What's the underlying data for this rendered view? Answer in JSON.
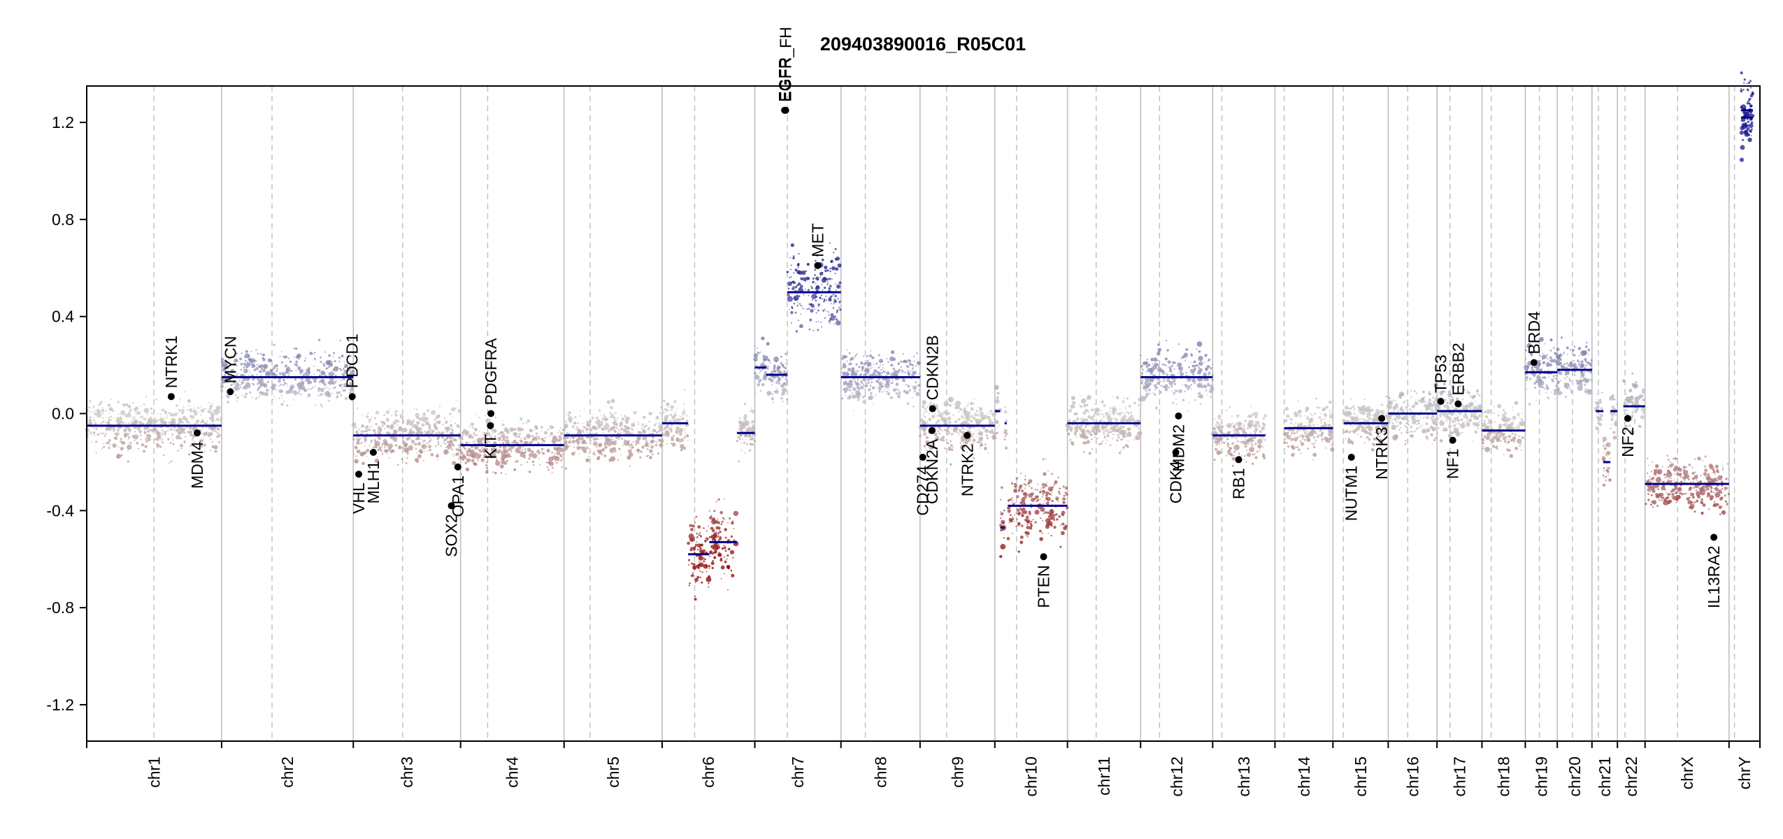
{
  "chart_data": {
    "type": "scatter",
    "title": "209403890016_R05C01",
    "xlabel": "",
    "ylabel": "",
    "ylim": [
      -1.35,
      1.35
    ],
    "yticks": [
      -1.2,
      -0.8,
      -0.4,
      0.0,
      0.4,
      0.8,
      1.2
    ],
    "ytick_labels": [
      "-1.2",
      "-0.8",
      "-0.4",
      "0.0",
      "0.4",
      "0.8",
      "1.2"
    ],
    "grid": false,
    "colors": {
      "gain": "#1a1a8c",
      "loss": "#8b0000",
      "neutral": "#c8c8c8",
      "segment": "#00008b",
      "gene_point": "#000000",
      "chrom_border": "#bebebe"
    },
    "chromosomes": [
      {
        "name": "chr1",
        "start": 0.0,
        "end": 249.0,
        "centromere": 124.0
      },
      {
        "name": "chr2",
        "start": 249.0,
        "end": 492.0,
        "centromere": 93.0
      },
      {
        "name": "chr3",
        "start": 492.0,
        "end": 690.0,
        "centromere": 91.0
      },
      {
        "name": "chr4",
        "start": 690.0,
        "end": 881.0,
        "centromere": 50.0
      },
      {
        "name": "chr5",
        "start": 881.0,
        "end": 1062.0,
        "centromere": 48.0
      },
      {
        "name": "chr6",
        "start": 1062.0,
        "end": 1233.0,
        "centromere": 60.0
      },
      {
        "name": "chr7",
        "start": 1233.0,
        "end": 1392.0,
        "centromere": 60.0
      },
      {
        "name": "chr8",
        "start": 1392.0,
        "end": 1538.0,
        "centromere": 45.0
      },
      {
        "name": "chr9",
        "start": 1538.0,
        "end": 1676.0,
        "centromere": 49.0
      },
      {
        "name": "chr10",
        "start": 1676.0,
        "end": 1810.0,
        "centromere": 40.0
      },
      {
        "name": "chr11",
        "start": 1810.0,
        "end": 1945.0,
        "centromere": 53.0
      },
      {
        "name": "chr12",
        "start": 1945.0,
        "end": 2078.0,
        "centromere": 35.0
      },
      {
        "name": "chr13",
        "start": 2078.0,
        "end": 2193.0,
        "centromere": 17.0
      },
      {
        "name": "chr14",
        "start": 2193.0,
        "end": 2300.0,
        "centromere": 17.0
      },
      {
        "name": "chr15",
        "start": 2300.0,
        "end": 2402.0,
        "centromere": 19.0
      },
      {
        "name": "chr16",
        "start": 2402.0,
        "end": 2492.0,
        "centromere": 36.0
      },
      {
        "name": "chr17",
        "start": 2492.0,
        "end": 2575.0,
        "centromere": 24.0
      },
      {
        "name": "chr18",
        "start": 2575.0,
        "end": 2655.0,
        "centromere": 17.0
      },
      {
        "name": "chr19",
        "start": 2655.0,
        "end": 2714.0,
        "centromere": 26.0
      },
      {
        "name": "chr20",
        "start": 2714.0,
        "end": 2778.0,
        "centromere": 28.0
      },
      {
        "name": "chr21",
        "start": 2778.0,
        "end": 2825.0,
        "centromere": 12.0
      },
      {
        "name": "chr22",
        "start": 2825.0,
        "end": 2876.0,
        "centromere": 14.0
      },
      {
        "name": "chrX",
        "start": 2876.0,
        "end": 3031.0,
        "centromere": 60.0
      },
      {
        "name": "chrY",
        "start": 3031.0,
        "end": 3088.0,
        "centromere": 10.0
      }
    ],
    "xlim": [
      0,
      3088
    ],
    "segments": [
      {
        "chr": "chr1",
        "start": 0.0,
        "end": 249.0,
        "value": -0.05
      },
      {
        "chr": "chr2",
        "start": 249.0,
        "end": 492.0,
        "value": 0.15
      },
      {
        "chr": "chr3",
        "start": 492.0,
        "end": 690.0,
        "value": -0.09
      },
      {
        "chr": "chr4",
        "start": 690.0,
        "end": 881.0,
        "value": -0.13
      },
      {
        "chr": "chr5",
        "start": 881.0,
        "end": 1062.0,
        "value": -0.09
      },
      {
        "chr": "chr6",
        "start": 1062.0,
        "end": 1110.0,
        "value": -0.04
      },
      {
        "chr": "chr6",
        "start": 1110.0,
        "end": 1149.0,
        "value": -0.58
      },
      {
        "chr": "chr6",
        "start": 1149.0,
        "end": 1200.0,
        "value": -0.53
      },
      {
        "chr": "chr6",
        "start": 1200.0,
        "end": 1233.0,
        "value": -0.08
      },
      {
        "chr": "chr7",
        "start": 1233.0,
        "end": 1254.0,
        "value": 0.19
      },
      {
        "chr": "chr7",
        "start": 1254.0,
        "end": 1293.0,
        "value": 0.16
      },
      {
        "chr": "chr7",
        "start": 1293.0,
        "end": 1392.0,
        "value": 0.5
      },
      {
        "chr": "chr8",
        "start": 1392.0,
        "end": 1538.0,
        "value": 0.15
      },
      {
        "chr": "chr9",
        "start": 1538.0,
        "end": 1676.0,
        "value": -0.05
      },
      {
        "chr": "chr10",
        "start": 1676.0,
        "end": 1686.0,
        "value": 0.01
      },
      {
        "chr": "chr10",
        "start": 1686.0,
        "end": 1694.0,
        "value": -0.47
      },
      {
        "chr": "chr10",
        "start": 1694.0,
        "end": 1698.0,
        "value": -0.04
      },
      {
        "chr": "chr10",
        "start": 1700.0,
        "end": 1810.0,
        "value": -0.38
      },
      {
        "chr": "chr11",
        "start": 1810.0,
        "end": 1945.0,
        "value": -0.04
      },
      {
        "chr": "chr12",
        "start": 1945.0,
        "end": 2078.0,
        "value": 0.15
      },
      {
        "chr": "chr13",
        "start": 2078.0,
        "end": 2175.0,
        "value": -0.09
      },
      {
        "chr": "chr14",
        "start": 2210.0,
        "end": 2300.0,
        "value": -0.06
      },
      {
        "chr": "chr15",
        "start": 2320.0,
        "end": 2402.0,
        "value": -0.04
      },
      {
        "chr": "chr16",
        "start": 2402.0,
        "end": 2492.0,
        "value": 0.0
      },
      {
        "chr": "chr17",
        "start": 2492.0,
        "end": 2575.0,
        "value": 0.01
      },
      {
        "chr": "chr18",
        "start": 2575.0,
        "end": 2655.0,
        "value": -0.07
      },
      {
        "chr": "chr19",
        "start": 2655.0,
        "end": 2714.0,
        "value": 0.17
      },
      {
        "chr": "chr20",
        "start": 2714.0,
        "end": 2778.0,
        "value": 0.18
      },
      {
        "chr": "chr21",
        "start": 2785.0,
        "end": 2799.0,
        "value": 0.01
      },
      {
        "chr": "chr21",
        "start": 2799.0,
        "end": 2812.0,
        "value": -0.2
      },
      {
        "chr": "chr21",
        "start": 2812.0,
        "end": 2825.0,
        "value": 0.01
      },
      {
        "chr": "chr22",
        "start": 2836.0,
        "end": 2876.0,
        "value": 0.03
      },
      {
        "chr": "chrX",
        "start": 2876.0,
        "end": 3031.0,
        "value": -0.29
      },
      {
        "chr": "chrY",
        "start": 3053.0,
        "end": 3075.0,
        "value": 1.22
      },
      {
        "chr": "chrY",
        "start": 3053.0,
        "end": 3075.0,
        "value": 1.25
      }
    ],
    "genes": [
      {
        "label": "NTRK1",
        "x": 156.0,
        "value": 0.07
      },
      {
        "label": "MDM4",
        "x": 204.0,
        "value": -0.08
      },
      {
        "label": "MYCN",
        "x": 265.0,
        "value": 0.09
      },
      {
        "label": "PDCD1",
        "x": 490.0,
        "value": 0.07
      },
      {
        "label": "VHL",
        "x": 502.0,
        "value": -0.25
      },
      {
        "label": "MLH1",
        "x": 529.0,
        "value": -0.16
      },
      {
        "label": "SOX2",
        "x": 673.0,
        "value": -0.38
      },
      {
        "label": "OPA1",
        "x": 685.0,
        "value": -0.22
      },
      {
        "label": "KIT",
        "x": 745.0,
        "value": -0.05
      },
      {
        "label": "PDGFRA",
        "x": 746.0,
        "value": 0.0
      },
      {
        "label": "EGFR",
        "x": 1288.0,
        "value": 1.25
      },
      {
        "label": "EGFR_FH",
        "x": 1290.0,
        "value": 1.25
      },
      {
        "label": "MET",
        "x": 1349.0,
        "value": 0.61
      },
      {
        "label": "CD274",
        "x": 1543.0,
        "value": -0.18
      },
      {
        "label": "CDKN2A",
        "x": 1560.0,
        "value": -0.07
      },
      {
        "label": "CDKN2B",
        "x": 1561.0,
        "value": 0.02
      },
      {
        "label": "NTRK2",
        "x": 1625.0,
        "value": -0.09
      },
      {
        "label": "PTEN",
        "x": 1766.0,
        "value": -0.59
      },
      {
        "label": "CDK4",
        "x": 2010.0,
        "value": -0.16
      },
      {
        "label": "MDM2",
        "x": 2015.0,
        "value": -0.01
      },
      {
        "label": "RB1",
        "x": 2126.0,
        "value": -0.19
      },
      {
        "label": "NUTM1",
        "x": 2334.0,
        "value": -0.18
      },
      {
        "label": "NTRK3",
        "x": 2390.0,
        "value": -0.02
      },
      {
        "label": "TP53",
        "x": 2499.0,
        "value": 0.05
      },
      {
        "label": "NF1",
        "x": 2521.0,
        "value": -0.11
      },
      {
        "label": "ERBB2",
        "x": 2531.0,
        "value": 0.04
      },
      {
        "label": "BRD4",
        "x": 2671.0,
        "value": 0.21
      },
      {
        "label": "NF2",
        "x": 2844.0,
        "value": -0.02
      },
      {
        "label": "IL13RA2",
        "x": 3003.0,
        "value": -0.51
      }
    ]
  }
}
